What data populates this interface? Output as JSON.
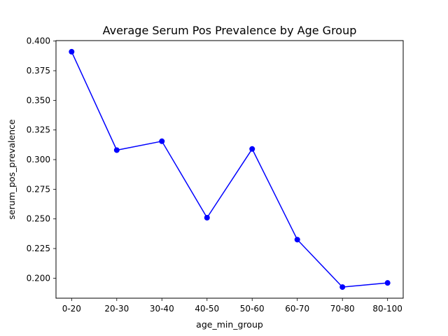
{
  "chart_data": {
    "type": "line",
    "title": "Average Serum Pos Prevalence by Age Group",
    "xlabel": "age_min_group",
    "ylabel": "serum_pos_prevalence",
    "categories": [
      "0-20",
      "20-30",
      "30-40",
      "40-50",
      "50-60",
      "60-70",
      "70-80",
      "80-100"
    ],
    "series": [
      {
        "values": [
          0.391,
          0.308,
          0.3155,
          0.251,
          0.309,
          0.2325,
          0.1925,
          0.196
        ],
        "color": "#0000ff",
        "marker": "circle"
      }
    ],
    "yticks": [
      "0.200",
      "0.225",
      "0.250",
      "0.275",
      "0.300",
      "0.325",
      "0.350",
      "0.375",
      "0.400"
    ],
    "ylim": [
      0.1831,
      0.4004
    ],
    "grid": false,
    "legend": false
  }
}
